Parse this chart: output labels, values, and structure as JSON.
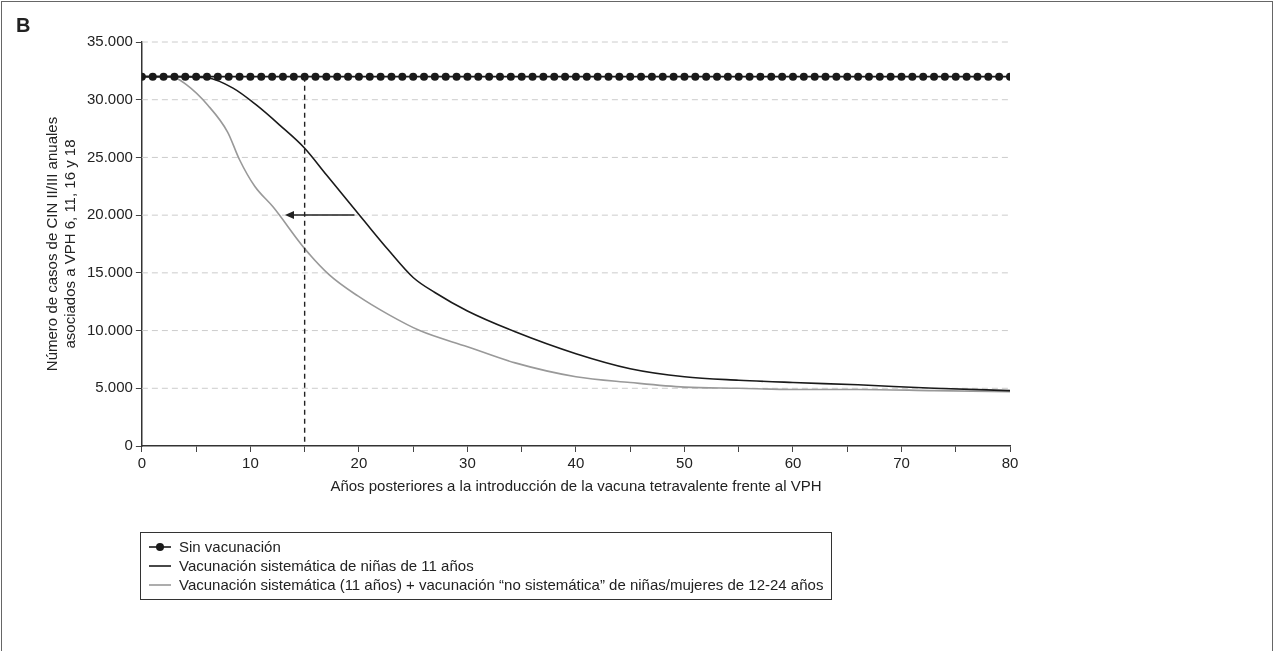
{
  "chart_data": {
    "type": "line",
    "title": "B",
    "xlabel": "Años posteriores a la introducción de la vacuna tetravalente frente al VPH",
    "ylabel": "Número de casos de CIN II/III anuales\nasociados a VPH 6, 11, 16 y 18",
    "xlim": [
      0,
      80
    ],
    "xticks": [
      0,
      {
        "value": 5,
        "label": null
      },
      10,
      {
        "value": 15,
        "label": null
      },
      20,
      {
        "value": 25,
        "label": null
      },
      30,
      {
        "value": 35,
        "label": null
      },
      40,
      {
        "value": 45,
        "label": null
      },
      50,
      {
        "value": 55,
        "label": null
      },
      60,
      {
        "value": 65,
        "label": null
      },
      70,
      {
        "value": 75,
        "label": null
      },
      80
    ],
    "ylim": [
      0,
      35000
    ],
    "yticks": [
      {
        "value": 0,
        "label": "0"
      },
      {
        "value": 5000,
        "label": "5.000"
      },
      {
        "value": 10000,
        "label": "10.000"
      },
      {
        "value": 15000,
        "label": "15.000"
      },
      {
        "value": 20000,
        "label": "20.000"
      },
      {
        "value": 25000,
        "label": "25.000"
      },
      {
        "value": 30000,
        "label": "30.000"
      },
      {
        "value": 35000,
        "label": "35.000"
      }
    ],
    "grid": "y",
    "legend": "bottom left",
    "ref_lines": [
      {
        "axis": "x",
        "value": 15,
        "color": "#222222",
        "line_style": "dashed"
      }
    ],
    "series": [
      {
        "name": "Sin vacunación",
        "color": "#1a1a1a",
        "marker": "circle",
        "line_style": "solid",
        "x": [
          0,
          1,
          2,
          3,
          4,
          5,
          6,
          7,
          8,
          9,
          10,
          11,
          12,
          13,
          14,
          15,
          16,
          17,
          18,
          19,
          20,
          21,
          22,
          23,
          24,
          25,
          26,
          27,
          28,
          29,
          30,
          31,
          32,
          33,
          34,
          35,
          36,
          37,
          38,
          39,
          40,
          41,
          42,
          43,
          44,
          45,
          46,
          47,
          48,
          49,
          50,
          51,
          52,
          53,
          54,
          55,
          56,
          57,
          58,
          59,
          60,
          61,
          62,
          63,
          64,
          65,
          66,
          67,
          68,
          69,
          70,
          71,
          72,
          73,
          74,
          75,
          76,
          77,
          78,
          79,
          80
        ],
        "values": [
          32000,
          32000,
          32000,
          32000,
          32000,
          32000,
          32000,
          32000,
          32000,
          32000,
          32000,
          32000,
          32000,
          32000,
          32000,
          32000,
          32000,
          32000,
          32000,
          32000,
          32000,
          32000,
          32000,
          32000,
          32000,
          32000,
          32000,
          32000,
          32000,
          32000,
          32000,
          32000,
          32000,
          32000,
          32000,
          32000,
          32000,
          32000,
          32000,
          32000,
          32000,
          32000,
          32000,
          32000,
          32000,
          32000,
          32000,
          32000,
          32000,
          32000,
          32000,
          32000,
          32000,
          32000,
          32000,
          32000,
          32000,
          32000,
          32000,
          32000,
          32000,
          32000,
          32000,
          32000,
          32000,
          32000,
          32000,
          32000,
          32000,
          32000,
          32000,
          32000,
          32000,
          32000,
          32000,
          32000,
          32000,
          32000,
          32000,
          32000,
          32000
        ]
      },
      {
        "name": "Vacunación sistemática de niñas de 11 años",
        "color": "#1a1a1a",
        "marker": "none",
        "line_style": "solid",
        "x": [
          0,
          3,
          6,
          8.4,
          10.6,
          12.7,
          15,
          17,
          19,
          20.4,
          22.7,
          25,
          27,
          30,
          34.4,
          40,
          45,
          50,
          55,
          60,
          66,
          73,
          80
        ],
        "values": [
          32000,
          32000,
          31900,
          31000,
          29500,
          27800,
          25800,
          23500,
          21200,
          19600,
          17000,
          14600,
          13300,
          11700,
          9900,
          8000,
          6700,
          6000,
          5700,
          5500,
          5300,
          5000,
          4800
        ]
      },
      {
        "name": "Vacunación sistemática (11 años) + vacunación “no sistemática” de niñas/mujeres de 12-24 años",
        "color": "#999999",
        "marker": "none",
        "line_style": "solid",
        "x": [
          0,
          2.7,
          4.1,
          6.1,
          7.9,
          9,
          10.4,
          12.1,
          15,
          17.3,
          19.9,
          22.7,
          25.6,
          30,
          34.4,
          40,
          45,
          50,
          55,
          60,
          66,
          73,
          80
        ],
        "values": [
          32000,
          32000,
          31300,
          29500,
          27200,
          24800,
          22500,
          20700,
          17100,
          14800,
          13000,
          11400,
          10000,
          8600,
          7200,
          6000,
          5500,
          5100,
          5000,
          4900,
          4900,
          4800,
          4700
        ]
      }
    ]
  }
}
